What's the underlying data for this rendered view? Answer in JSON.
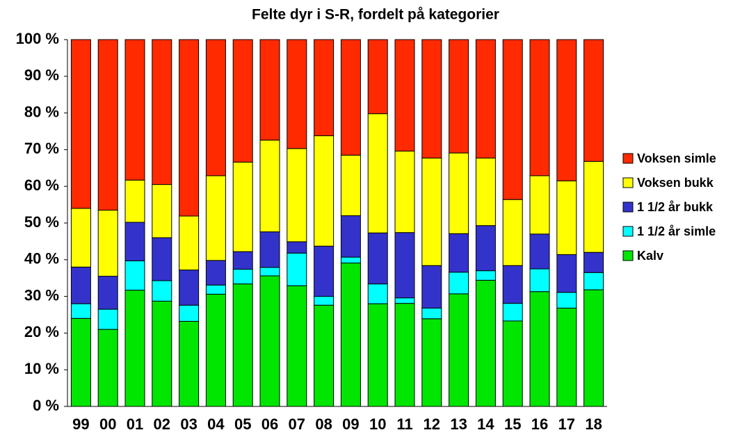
{
  "chart_data": {
    "type": "stacked_bar",
    "title": "Felte dyr i S-R, fordelt på kategorier",
    "categories": [
      "99",
      "00",
      "01",
      "02",
      "03",
      "04",
      "05",
      "06",
      "07",
      "08",
      "09",
      "10",
      "11",
      "12",
      "13",
      "14",
      "15",
      "16",
      "17",
      "18"
    ],
    "series": [
      {
        "name": "Kalv",
        "color": "#00e600",
        "values": [
          24,
          21,
          31.7,
          28.7,
          23.2,
          30.6,
          33.4,
          35.6,
          32.9,
          27.6,
          39.1,
          28,
          28.1,
          23.9,
          30.7,
          34.4,
          23.3,
          31.3,
          26.8,
          31.8
        ]
      },
      {
        "name": "1 1/2 år simle",
        "color": "#00ffff",
        "values": [
          4,
          5.5,
          8,
          5.6,
          4.4,
          2.5,
          4,
          2.3,
          8.9,
          2.4,
          1.6,
          5.4,
          1.5,
          2.9,
          5.9,
          2.6,
          4.8,
          6.2,
          4.3,
          4.7
        ]
      },
      {
        "name": "1 1/2 år bukk",
        "color": "#3333cc",
        "values": [
          10,
          9,
          10.5,
          11.7,
          9.6,
          6.7,
          4.8,
          9.7,
          3.1,
          13.7,
          11.3,
          13.9,
          17.8,
          11.6,
          10.5,
          12.3,
          10.3,
          9.5,
          10.3,
          5.5
        ]
      },
      {
        "name": "Voksen bukk",
        "color": "#ffff00",
        "values": [
          16,
          18,
          11.5,
          14.5,
          14.7,
          23.1,
          24.4,
          25,
          25.4,
          30.1,
          16.5,
          32.5,
          22.2,
          29.3,
          22,
          18.4,
          18,
          15.9,
          20.1,
          24.8
        ]
      },
      {
        "name": "Voksen simle",
        "color": "#ff2a00",
        "values": [
          46,
          46.5,
          38.3,
          39.5,
          48.1,
          37.1,
          33.4,
          27.4,
          29.7,
          26.2,
          31.5,
          20.2,
          30.4,
          32.3,
          30.9,
          32.3,
          43.6,
          37.1,
          38.5,
          33.2
        ]
      }
    ],
    "ylim": [
      0,
      100
    ],
    "yticks": [
      {
        "value": 0,
        "label": "0 %"
      },
      {
        "value": 10,
        "label": "10 %"
      },
      {
        "value": 20,
        "label": "20 %"
      },
      {
        "value": 30,
        "label": "30 %"
      },
      {
        "value": 40,
        "label": "40 %"
      },
      {
        "value": 50,
        "label": "50 %"
      },
      {
        "value": 60,
        "label": "60 %"
      },
      {
        "value": 70,
        "label": "70 %"
      },
      {
        "value": 80,
        "label": "80 %"
      },
      {
        "value": 90,
        "label": "90 %"
      },
      {
        "value": 100,
        "label": "100 %"
      }
    ],
    "legend": "right"
  }
}
